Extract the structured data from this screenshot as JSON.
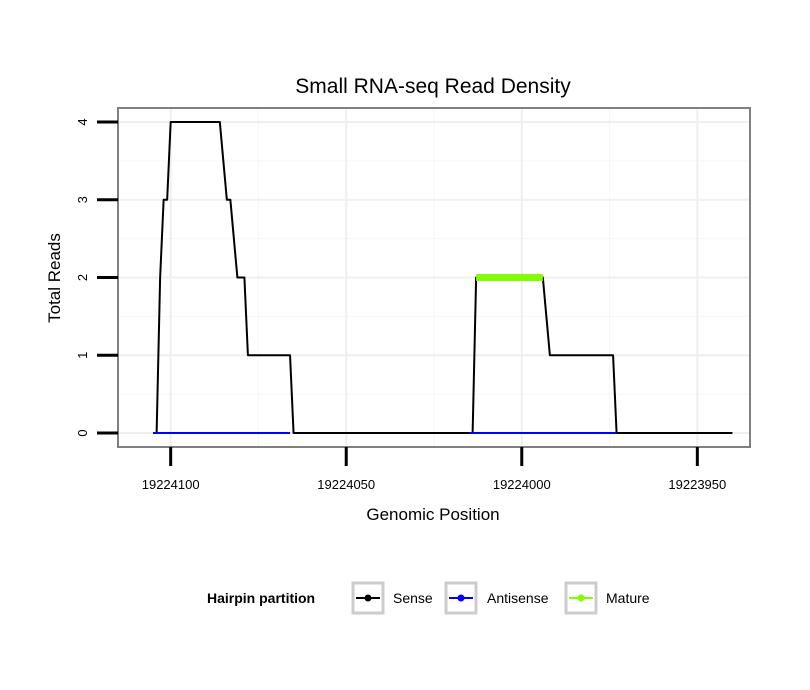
{
  "chart_data": {
    "type": "line",
    "title": "Small RNA-seq Read Density",
    "xlabel": "Genomic Position",
    "ylabel": "Total Reads",
    "xlim": [
      19224115,
      19223935
    ],
    "ylim": [
      -0.18,
      4.18
    ],
    "x_reversed": true,
    "grid": true,
    "x_ticks": [
      19224100,
      19224050,
      19224000,
      19223950
    ],
    "x_tick_labels": [
      "19224100",
      "19224050",
      "19224000",
      "19223950"
    ],
    "y_ticks": [
      0,
      1,
      2,
      3,
      4
    ],
    "y_tick_labels": [
      "0",
      "1",
      "2",
      "3",
      "4"
    ],
    "legend": {
      "title": "Hairpin partition",
      "placement": "bottom",
      "entries": [
        {
          "name": "Sense",
          "color": "#000000"
        },
        {
          "name": "Antisense",
          "color": "#0000ff"
        },
        {
          "name": "Mature",
          "color": "#7fff00"
        }
      ]
    },
    "series": [
      {
        "name": "Sense",
        "color": "#000000",
        "x": [
          19224105,
          19224104,
          19224103,
          19224102,
          19224101,
          19224100,
          19224099,
          19224095,
          19224090,
          19224086,
          19224085,
          19224084,
          19224083,
          19224082,
          19224081,
          19224080,
          19224079,
          19224078,
          19224068,
          19224066,
          19224065,
          19224060,
          19224050,
          19224040,
          19224030,
          19224020,
          19224015,
          19224014,
          19224013,
          19224012,
          19224010,
          19224000,
          19223995,
          19223994,
          19223993,
          19223992,
          19223985,
          19223980,
          19223975,
          19223974,
          19223973,
          19223972,
          19223960,
          19223950,
          19223940
        ],
        "y": [
          0,
          0,
          2,
          3,
          3,
          4,
          4,
          4,
          4,
          4,
          3.5,
          3,
          3,
          2.5,
          2,
          2,
          2,
          1,
          1,
          1,
          0,
          0,
          0,
          0,
          0,
          0,
          0,
          0,
          2,
          2,
          2,
          2,
          2,
          2,
          1.5,
          1,
          1,
          1,
          1,
          1,
          0,
          0,
          0,
          0,
          0
        ]
      },
      {
        "name": "Antisense",
        "color": "#0000ff",
        "x": [
          19224105,
          19224066,
          19224015,
          19223973
        ],
        "y": [
          0,
          0,
          0,
          0
        ],
        "segments": [
          [
            19224105,
            19224066
          ],
          [
            19224015,
            19223973
          ]
        ]
      },
      {
        "name": "Mature",
        "color": "#7fff00",
        "x": [
          19224013,
          19223994
        ],
        "y": [
          2,
          2
        ]
      }
    ]
  }
}
